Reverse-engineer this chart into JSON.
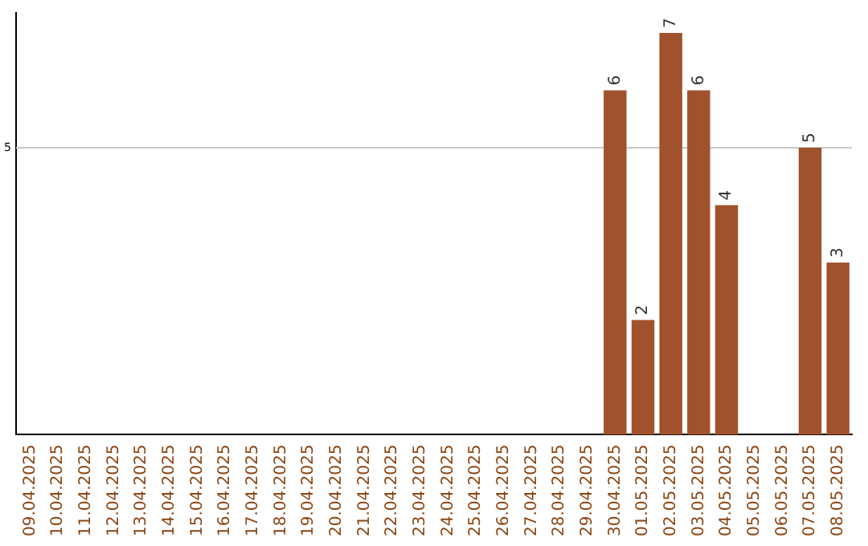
{
  "chart_data": {
    "type": "bar",
    "categories": [
      "09.04.2025",
      "10.04.2025",
      "11.04.2025",
      "12.04.2025",
      "13.04.2025",
      "14.04.2025",
      "15.04.2025",
      "16.04.2025",
      "17.04.2025",
      "18.04.2025",
      "19.04.2025",
      "20.04.2025",
      "21.04.2025",
      "22.04.2025",
      "23.04.2025",
      "24.04.2025",
      "25.04.2025",
      "26.04.2025",
      "27.04.2025",
      "28.04.2025",
      "29.04.2025",
      "30.04.2025",
      "01.05.2025",
      "02.05.2025",
      "03.05.2025",
      "04.05.2025",
      "05.05.2025",
      "06.05.2025",
      "07.05.2025",
      "08.05.2025"
    ],
    "values": [
      null,
      null,
      null,
      null,
      null,
      null,
      null,
      null,
      null,
      null,
      null,
      null,
      null,
      null,
      null,
      null,
      null,
      null,
      null,
      null,
      null,
      6,
      2,
      7,
      6,
      4,
      null,
      null,
      5,
      3
    ],
    "data_labels": true,
    "color": "#a0522d",
    "ylim": [
      0,
      7.35
    ],
    "ref_lines": [
      {
        "axis": "y",
        "value": 5,
        "label": "5",
        "color": "#c8c8c8"
      }
    ]
  }
}
